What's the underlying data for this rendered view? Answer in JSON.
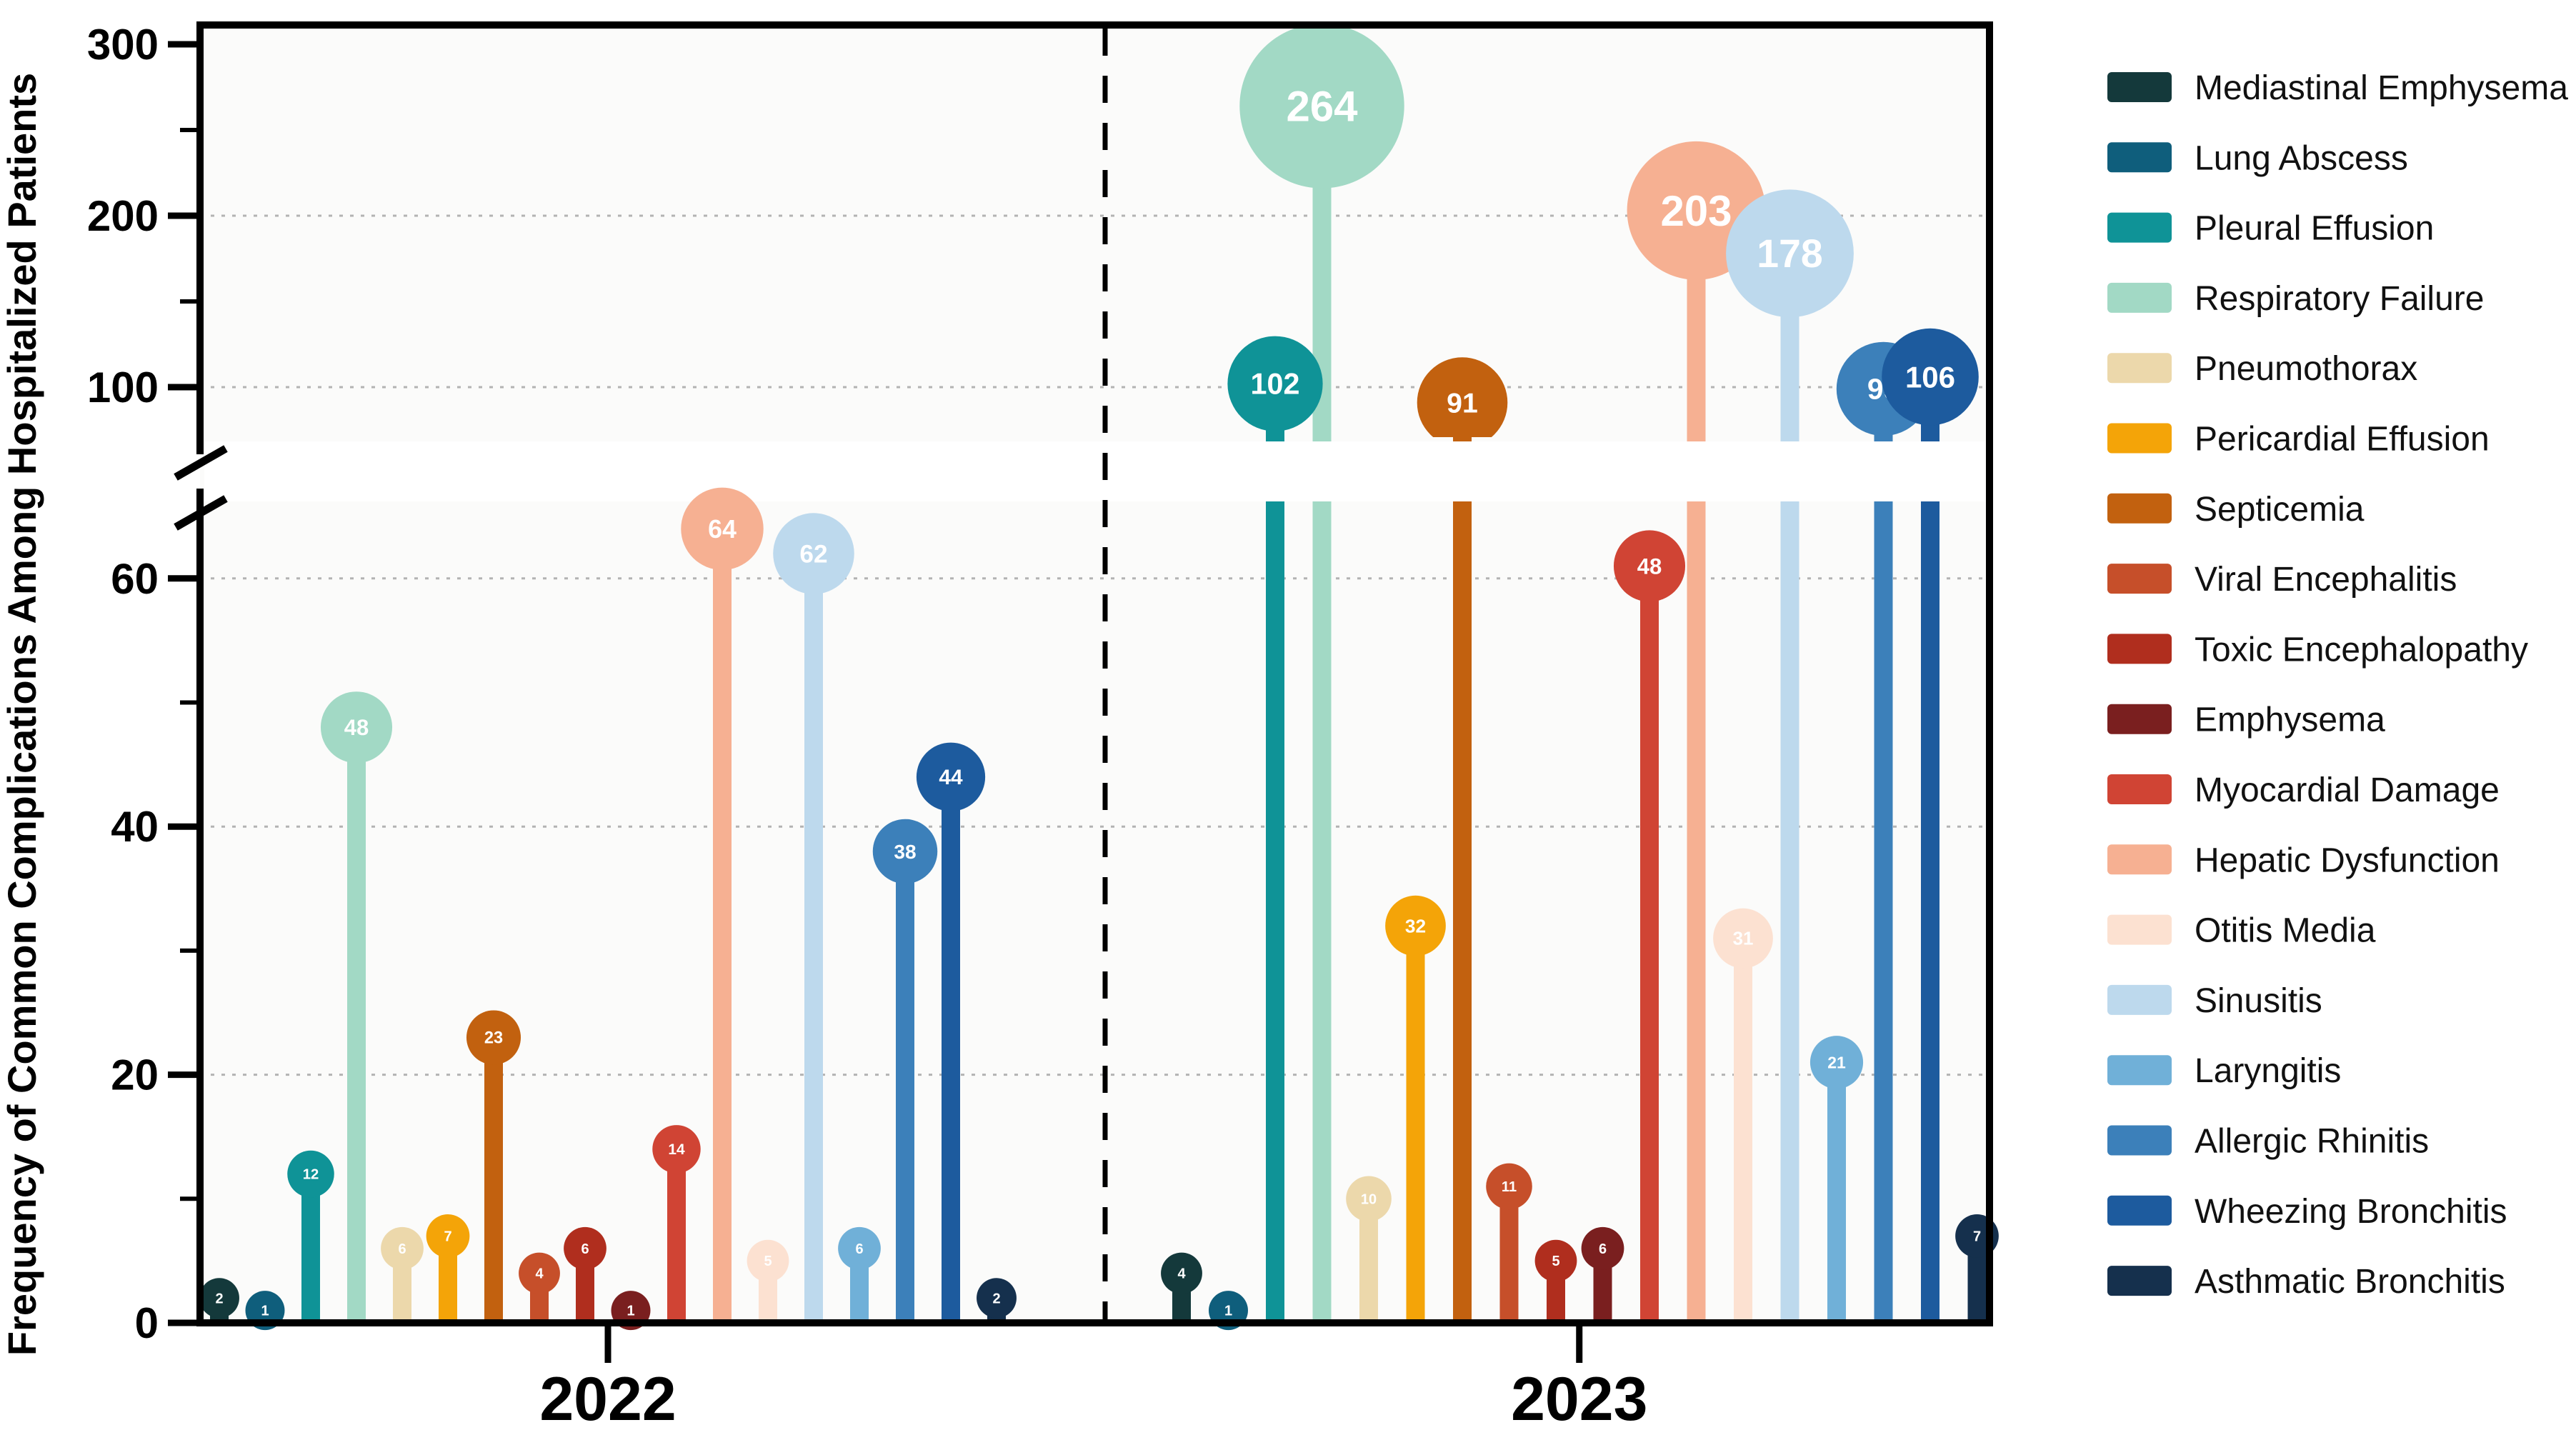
{
  "chart_data": {
    "type": "bar",
    "subtype": "lollipop",
    "title": "",
    "ylabel": "Frequency of Common Complications Among Hospitalized Patients",
    "xlabel": "",
    "categories": [
      "2022",
      "2023"
    ],
    "series": [
      {
        "name": "Mediastinal Emphysema",
        "color": "#14393b",
        "values": [
          2,
          4
        ]
      },
      {
        "name": "Lung Abscess",
        "color": "#0f5e7c",
        "values": [
          1,
          1
        ]
      },
      {
        "name": "Pleural Effusion",
        "color": "#0f9397",
        "values": [
          12,
          102
        ]
      },
      {
        "name": "Respiratory Failure",
        "color": "#a2d9c5",
        "values": [
          48,
          264
        ]
      },
      {
        "name": "Pneumothorax",
        "color": "#ecd8ab",
        "values": [
          6,
          10
        ]
      },
      {
        "name": "Pericardial Effusion",
        "color": "#f4a408",
        "values": [
          7,
          32
        ]
      },
      {
        "name": "Septicemia",
        "color": "#c2610f",
        "values": [
          23,
          91
        ]
      },
      {
        "name": "Viral Encephalitis",
        "color": "#c64f2a",
        "values": [
          4,
          11
        ]
      },
      {
        "name": "Toxic Encephalopathy",
        "color": "#b02e1e",
        "values": [
          6,
          5
        ]
      },
      {
        "name": "Emphysema",
        "color": "#7a1f1f",
        "values": [
          1,
          6
        ]
      },
      {
        "name": "Myocardial Damage",
        "color": "#d04434",
        "values": [
          14,
          48
        ]
      },
      {
        "name": "Hepatic Dysfunction",
        "color": "#f6b092",
        "values": [
          64,
          203
        ]
      },
      {
        "name": "Otitis Media",
        "color": "#fce1d1",
        "values": [
          5,
          31
        ]
      },
      {
        "name": "Sinusitis",
        "color": "#bdd9ed",
        "values": [
          62,
          178
        ]
      },
      {
        "name": "Laryngitis",
        "color": "#70b0d8",
        "values": [
          6,
          21
        ]
      },
      {
        "name": "Allergic Rhinitis",
        "color": "#3c80ba",
        "values": [
          38,
          99
        ]
      },
      {
        "name": "Wheezing Bronchitis",
        "color": "#1d5b9e",
        "values": [
          44,
          106
        ]
      },
      {
        "name": "Asthmatic Bronchitis",
        "color": "#15304d",
        "values": [
          2,
          7
        ]
      }
    ],
    "y_axis": {
      "broken": true,
      "lower_panel": {
        "range": [
          0,
          66
        ],
        "major_ticks": [
          0,
          20,
          40,
          60
        ],
        "minor_ticks": [
          10,
          30,
          50
        ]
      },
      "upper_panel": {
        "range": [
          67,
          313
        ],
        "major_ticks": [
          100,
          200,
          300
        ],
        "minor_ticks": [
          150,
          250
        ]
      },
      "gridlines": [
        20,
        40,
        60,
        100,
        200
      ],
      "grid_style": "dotted"
    },
    "legend_position": "right",
    "group_divider": "dashed vertical line between 2022 and 2023",
    "render_anomaly": {
      "group": "2023",
      "series": "Myocardial Damage",
      "pinned_y_value": 61,
      "note": "bubble labeled 48 is drawn just above the 60 gridline in the source figure"
    }
  }
}
